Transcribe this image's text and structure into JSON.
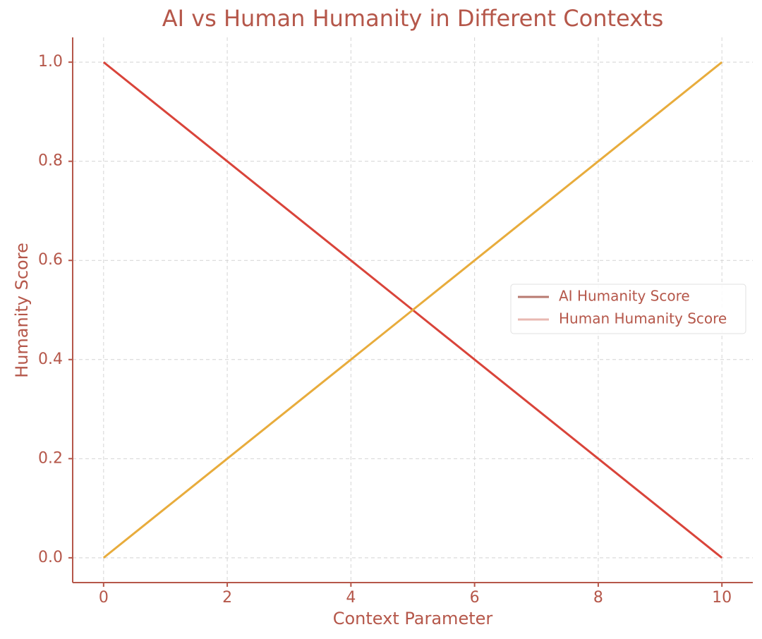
{
  "chart_data": {
    "type": "line",
    "title": "AI vs Human Humanity in Different Contexts",
    "x_label": "Context Parameter",
    "y_label": "Humanity Score",
    "x": [
      0,
      1,
      2,
      3,
      4,
      5,
      6,
      7,
      8,
      9,
      10
    ],
    "series": [
      {
        "name": "AI Humanity Score",
        "color": "#d9443a",
        "legend_color": "#b87a70",
        "values": [
          1,
          0.9,
          0.8,
          0.7,
          0.6,
          0.5,
          0.4,
          0.3,
          0.2,
          0.1,
          0
        ]
      },
      {
        "name": "Human Humanity Score",
        "color": "#e8ac3c",
        "legend_color": "#e8b8b2",
        "values": [
          0,
          0.1,
          0.2,
          0.3,
          0.4,
          0.5,
          0.6,
          0.7,
          0.8,
          0.9,
          1
        ]
      }
    ],
    "xlim": [
      -0.5,
      10.5
    ],
    "ylim": [
      -0.05,
      1.05
    ],
    "xticks": [
      0,
      2,
      4,
      6,
      8,
      10
    ],
    "yticks": [
      {
        "value": 0,
        "label": "0.0"
      },
      0.2,
      0.4,
      0.6,
      0.8,
      {
        "value": 1,
        "label": "1.0"
      }
    ],
    "grid": true,
    "legend": "right"
  }
}
